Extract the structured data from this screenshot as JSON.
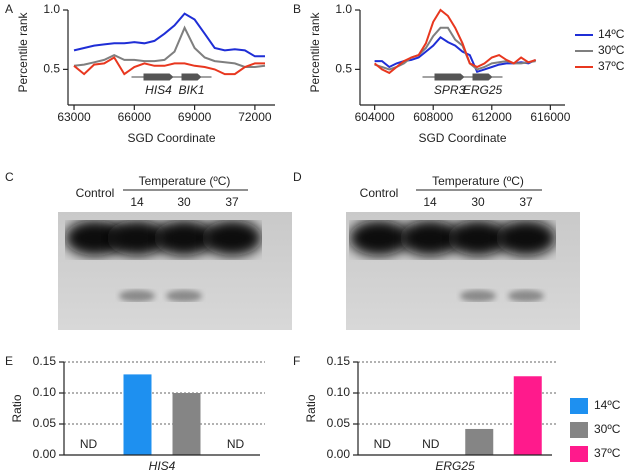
{
  "chart_data": [
    {
      "type": "line",
      "panel": "A",
      "xlabel": "SGD Coordinate",
      "ylabel": "Percentile rank",
      "x": [
        63000,
        63500,
        64000,
        64500,
        65000,
        65500,
        66000,
        66500,
        67000,
        67500,
        68000,
        68500,
        69000,
        69500,
        70000,
        70500,
        71000,
        71500,
        72000,
        72500
      ],
      "series": [
        {
          "name": "14ºC",
          "color": "#1f2ed6",
          "values": [
            0.66,
            0.68,
            0.7,
            0.71,
            0.72,
            0.72,
            0.73,
            0.72,
            0.74,
            0.8,
            0.87,
            0.97,
            0.92,
            0.8,
            0.68,
            0.66,
            0.67,
            0.66,
            0.61,
            0.61
          ]
        },
        {
          "name": "30ºC",
          "color": "#7f7f7f",
          "values": [
            0.53,
            0.54,
            0.56,
            0.58,
            0.62,
            0.58,
            0.58,
            0.57,
            0.57,
            0.58,
            0.65,
            0.85,
            0.68,
            0.6,
            0.57,
            0.56,
            0.55,
            0.52,
            0.52,
            0.53
          ]
        },
        {
          "name": "37ºC",
          "color": "#e8371f",
          "values": [
            0.53,
            0.46,
            0.54,
            0.55,
            0.6,
            0.46,
            0.52,
            0.55,
            0.53,
            0.53,
            0.55,
            0.55,
            0.53,
            0.52,
            0.5,
            0.46,
            0.46,
            0.52,
            0.55,
            0.55
          ]
        }
      ],
      "xlim": [
        62700,
        73000
      ],
      "ylim": [
        0.2,
        1.0
      ],
      "xticks": [
        63000,
        66000,
        69000,
        72000
      ],
      "yticks": [
        0.5,
        {
          "value": 1,
          "label": "1.0"
        }
      ],
      "genes": [
        "HIS4",
        "BIK1"
      ],
      "legend": false
    },
    {
      "type": "line",
      "panel": "B",
      "xlabel": "SGD Coordinate",
      "ylabel": "Percentile rank",
      "x": [
        604000,
        604500,
        605000,
        605500,
        606000,
        606500,
        607000,
        607500,
        608000,
        608500,
        609000,
        609500,
        610000,
        610500,
        611000,
        611500,
        612000,
        612500,
        613000,
        613500,
        614000,
        614500,
        615000
      ],
      "series": [
        {
          "name": "14ºC",
          "color": "#1f2ed6",
          "values": [
            0.57,
            0.57,
            0.52,
            0.55,
            0.57,
            0.58,
            0.6,
            0.65,
            0.7,
            0.77,
            0.73,
            0.7,
            0.65,
            0.62,
            0.48,
            0.5,
            0.52,
            0.54,
            0.55,
            0.55,
            0.56,
            0.55,
            0.58
          ]
        },
        {
          "name": "30ºC",
          "color": "#7f7f7f",
          "values": [
            0.54,
            0.52,
            0.5,
            0.52,
            0.55,
            0.6,
            0.62,
            0.68,
            0.78,
            0.85,
            0.85,
            0.75,
            0.7,
            0.55,
            0.5,
            0.52,
            0.55,
            0.56,
            0.57,
            0.55,
            0.55,
            0.56,
            0.57
          ]
        },
        {
          "name": "37ºC",
          "color": "#e8371f",
          "values": [
            0.55,
            0.5,
            0.47,
            0.52,
            0.57,
            0.6,
            0.62,
            0.72,
            0.9,
            1.0,
            0.95,
            0.85,
            0.72,
            0.55,
            0.52,
            0.55,
            0.6,
            0.62,
            0.58,
            0.55,
            0.6,
            0.56,
            0.58
          ]
        }
      ],
      "xlim": [
        603000,
        617000
      ],
      "ylim": [
        0.2,
        1.0
      ],
      "xticks": [
        604000,
        608000,
        612000,
        616000
      ],
      "yticks": [
        0.5,
        {
          "value": 1,
          "label": "1.0"
        }
      ],
      "genes": [
        "SPR3",
        "ERG25"
      ],
      "legend": true
    },
    {
      "type": "bar",
      "panel": "E",
      "xlabel": "HIS4",
      "ylabel": "Ratio",
      "values": [
        null,
        0.13,
        0.1,
        null
      ],
      "value_labels": [
        "ND",
        null,
        null,
        "ND"
      ],
      "colors": [
        null,
        "#1e90f0",
        "#858585",
        null
      ],
      "ylim": [
        0,
        0.15
      ],
      "yticks": [
        {
          "value": 0,
          "label": "0.00"
        },
        0.05,
        {
          "value": 0.1,
          "label": "0.10"
        },
        0.15
      ],
      "grid": true
    },
    {
      "type": "bar",
      "panel": "F",
      "xlabel": "ERG25",
      "ylabel": "Ratio",
      "values": [
        null,
        null,
        0.042,
        0.127
      ],
      "value_labels": [
        "ND",
        "ND",
        null,
        null
      ],
      "colors": [
        null,
        null,
        "#858585",
        "#ff1a8c"
      ],
      "ylim": [
        0,
        0.15
      ],
      "yticks": [
        {
          "value": 0,
          "label": "0.00"
        },
        0.05,
        {
          "value": 0.1,
          "label": "0.10"
        },
        0.15
      ],
      "grid": true,
      "legend_items": [
        {
          "name": "14ºC",
          "color": "#1e90f0"
        },
        {
          "name": "30ºC",
          "color": "#858585"
        },
        {
          "name": "37ºC",
          "color": "#ff1a8c"
        }
      ]
    }
  ],
  "blots": [
    {
      "panel": "C",
      "control": "Control",
      "header": "Temperature (ºC)",
      "lanes": [
        "14",
        "30",
        "37"
      ],
      "faint_band_lanes": [
        1,
        2
      ]
    },
    {
      "panel": "D",
      "control": "Control",
      "header": "Temperature (ºC)",
      "lanes": [
        "14",
        "30",
        "37"
      ],
      "faint_band_lanes": [
        2,
        3
      ]
    }
  ]
}
